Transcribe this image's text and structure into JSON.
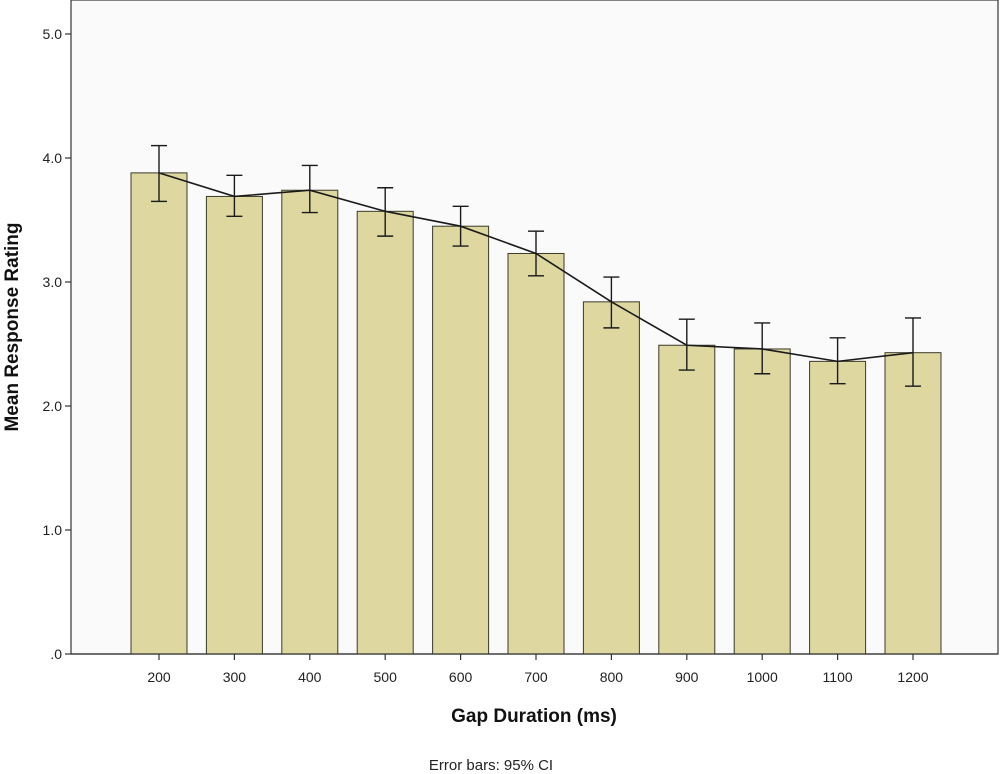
{
  "chart_data": {
    "type": "bar",
    "categories": [
      "200",
      "300",
      "400",
      "500",
      "600",
      "700",
      "800",
      "900",
      "1000",
      "1100",
      "1200"
    ],
    "values": [
      3.88,
      3.69,
      3.74,
      3.57,
      3.45,
      3.23,
      2.84,
      2.49,
      2.46,
      2.36,
      2.43
    ],
    "error_low": [
      3.65,
      3.53,
      3.56,
      3.37,
      3.29,
      3.05,
      2.63,
      2.29,
      2.26,
      2.18,
      2.16
    ],
    "error_high": [
      4.1,
      3.86,
      3.94,
      3.76,
      3.61,
      3.41,
      3.04,
      2.7,
      2.67,
      2.55,
      2.71
    ],
    "line_overlay": true,
    "title": "",
    "xlabel": "Gap Duration (ms)",
    "ylabel": "Mean Response Rating",
    "ylim": [
      0,
      5
    ],
    "yticks": [
      ".0",
      "1.0",
      "2.0",
      "3.0",
      "4.0",
      "5.0"
    ],
    "ytick_values": [
      0,
      1,
      2,
      3,
      4,
      5
    ],
    "note": "Error bars: 95% CI",
    "grid": false,
    "colors": {
      "bar_fill": "#ded7a0",
      "bar_stroke": "#3a3a2a",
      "plot_background": "#fafafa",
      "line": "#1a1a1a",
      "error_bar": "#1a1a1a"
    }
  }
}
